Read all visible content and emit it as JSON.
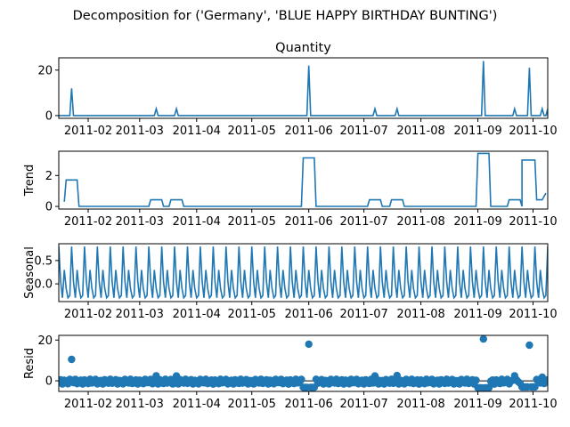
{
  "figure": {
    "suptitle": "Decomposition for ('Germany', 'BLUE HAPPY BIRTHDAY BUNTING')"
  },
  "chart_data": [
    {
      "type": "line",
      "name": "observed",
      "title": "Quantity",
      "ylabel": "",
      "color": "#1f77b4",
      "ylim": [
        -1.2,
        25.4
      ],
      "yticks": [
        0,
        20
      ],
      "x_range": [
        "2011-01-16",
        "2011-10-09"
      ],
      "xticks": [
        "2011-02",
        "2011-03",
        "2011-04",
        "2011-05",
        "2011-06",
        "2011-07",
        "2011-08",
        "2011-09",
        "2011-10"
      ],
      "baseline": 0,
      "spikes": [
        {
          "x": "2011-01-23",
          "y": 12
        },
        {
          "x": "2011-03-10",
          "y": 3
        },
        {
          "x": "2011-03-21",
          "y": 3
        },
        {
          "x": "2011-06-01",
          "y": 22
        },
        {
          "x": "2011-07-07",
          "y": 3
        },
        {
          "x": "2011-07-19",
          "y": 3
        },
        {
          "x": "2011-09-04",
          "y": 24
        },
        {
          "x": "2011-09-21",
          "y": 3
        },
        {
          "x": "2011-09-29",
          "y": 21
        },
        {
          "x": "2011-10-06",
          "y": 3
        },
        {
          "x": "2011-10-09",
          "y": 3
        }
      ]
    },
    {
      "type": "line",
      "name": "trend",
      "title": "",
      "ylabel": "Trend",
      "color": "#1f77b4",
      "ylim": [
        -0.17,
        3.57
      ],
      "yticks": [
        0,
        2
      ],
      "x_range": [
        "2011-01-16",
        "2011-10-09"
      ],
      "xticks": [
        "2011-02",
        "2011-03",
        "2011-04",
        "2011-05",
        "2011-06",
        "2011-07",
        "2011-08",
        "2011-09",
        "2011-10"
      ],
      "points": [
        [
          "2011-01-19",
          0.3
        ],
        [
          "2011-01-20",
          1.71
        ],
        [
          "2011-01-26",
          1.71
        ],
        [
          "2011-01-27",
          0.0
        ],
        [
          "2011-03-06",
          0.0
        ],
        [
          "2011-03-07",
          0.43
        ],
        [
          "2011-03-13",
          0.43
        ],
        [
          "2011-03-14",
          0.0
        ],
        [
          "2011-03-17",
          0.0
        ],
        [
          "2011-03-18",
          0.43
        ],
        [
          "2011-03-24",
          0.43
        ],
        [
          "2011-03-25",
          0.0
        ],
        [
          "2011-05-28",
          0.0
        ],
        [
          "2011-05-29",
          3.14
        ],
        [
          "2011-06-04",
          3.14
        ],
        [
          "2011-06-05",
          0.0
        ],
        [
          "2011-07-03",
          0.0
        ],
        [
          "2011-07-04",
          0.43
        ],
        [
          "2011-07-10",
          0.43
        ],
        [
          "2011-07-11",
          0.0
        ],
        [
          "2011-07-15",
          0.0
        ],
        [
          "2011-07-16",
          0.43
        ],
        [
          "2011-07-22",
          0.43
        ],
        [
          "2011-07-23",
          0.0
        ],
        [
          "2011-08-31",
          0.0
        ],
        [
          "2011-09-01",
          3.43
        ],
        [
          "2011-09-07",
          3.43
        ],
        [
          "2011-09-08",
          0.0
        ],
        [
          "2011-09-17",
          0.0
        ],
        [
          "2011-09-18",
          0.43
        ],
        [
          "2011-09-24",
          0.43
        ],
        [
          "2011-09-25",
          0.0
        ],
        [
          "2011-09-25",
          3.0
        ],
        [
          "2011-10-02",
          3.0
        ],
        [
          "2011-10-03",
          0.43
        ],
        [
          "2011-10-06",
          0.43
        ],
        [
          "2011-10-08",
          0.86
        ]
      ]
    },
    {
      "type": "line",
      "name": "seasonal",
      "title": "",
      "ylabel": "Seasonal",
      "color": "#1f77b4",
      "ylim": [
        -0.38,
        0.86
      ],
      "yticks": [
        0.0,
        0.5
      ],
      "ytick_labels": [
        "0.0",
        "0.5"
      ],
      "x_range": [
        "2011-01-16",
        "2011-10-09"
      ],
      "xticks": [
        "2011-02",
        "2011-03",
        "2011-04",
        "2011-05",
        "2011-06",
        "2011-07",
        "2011-08",
        "2011-09",
        "2011-10"
      ],
      "period_days": 7,
      "cycle_values": [
        0.8,
        0.05,
        -0.3,
        0.3,
        -0.1,
        -0.3,
        -0.25
      ]
    },
    {
      "type": "scatter",
      "name": "resid",
      "title": "",
      "ylabel": "Resid",
      "color": "#1f77b4",
      "ylim": [
        -5.2,
        22.3
      ],
      "yticks": [
        0,
        20
      ],
      "x_range": [
        "2011-01-16",
        "2011-10-09"
      ],
      "xticks": [
        "2011-02",
        "2011-03",
        "2011-04",
        "2011-05",
        "2011-06",
        "2011-07",
        "2011-08",
        "2011-09",
        "2011-10"
      ],
      "baseline_range": [
        -1.6,
        0.8
      ],
      "points": [
        [
          "2011-01-23",
          10.5
        ],
        [
          "2011-03-10",
          2.5
        ],
        [
          "2011-03-21",
          2.4
        ],
        [
          "2011-06-01",
          18.0
        ],
        [
          "2011-07-07",
          2.4
        ],
        [
          "2011-07-19",
          2.6
        ],
        [
          "2011-09-04",
          20.5
        ],
        [
          "2011-09-21",
          2.5
        ],
        [
          "2011-09-29",
          17.5
        ],
        [
          "2011-10-06",
          1.8
        ]
      ],
      "negative_runs": [
        {
          "from": "2011-05-29",
          "to": "2011-06-04",
          "y": -3.2
        },
        {
          "from": "2011-09-01",
          "to": "2011-09-07",
          "y": -3.4
        },
        {
          "from": "2011-09-25",
          "to": "2011-10-02",
          "y": -3.0
        }
      ]
    }
  ]
}
